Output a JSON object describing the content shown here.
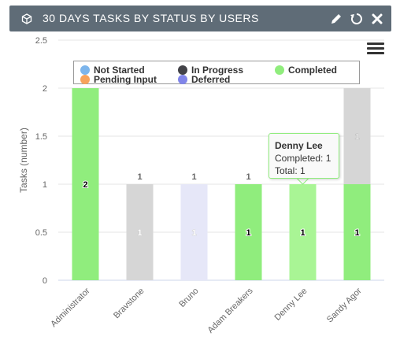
{
  "header": {
    "title": "30 DAYS TASKS BY STATUS BY USERS",
    "icons": [
      "cube-icon",
      "pencil-icon",
      "refresh-icon",
      "close-icon"
    ]
  },
  "colors": {
    "header_bg": "#5f6c77",
    "not_started": "#7cb5ec",
    "in_progress": "#434348",
    "completed": "#90ed7d",
    "pending_input": "#f7a35c",
    "deferred": "#8085e9",
    "gray_bar": "#d6d6d6",
    "lavender_bar": "#e6e7f8",
    "hover_green": "#a9f595"
  },
  "legend": {
    "items": [
      {
        "label": "Not Started",
        "color": "#7cb5ec"
      },
      {
        "label": "In Progress",
        "color": "#434348"
      },
      {
        "label": "Completed",
        "color": "#90ed7d"
      },
      {
        "label": "Pending Input",
        "color": "#f7a35c"
      },
      {
        "label": "Deferred",
        "color": "#8085e9"
      }
    ]
  },
  "tooltip": {
    "name": "Denny Lee",
    "line1": "Completed: 1",
    "line2": "Total: 1"
  },
  "chart_data": {
    "type": "bar",
    "stacked": true,
    "ylabel": "Tasks (number)",
    "ylim": [
      0,
      2.5
    ],
    "yticks": [
      "0",
      "0.5",
      "1",
      "1.5",
      "2",
      "2.5"
    ],
    "categories": [
      "Administrator",
      "Bravstone",
      "Bruno",
      "Adam Breakers",
      "Denny Lee",
      "Sandy Agor"
    ],
    "series": [
      {
        "name": "Not Started",
        "values": [
          0,
          0,
          0,
          0,
          0,
          0
        ]
      },
      {
        "name": "In Progress",
        "values": [
          0,
          0,
          0,
          0,
          0,
          0
        ]
      },
      {
        "name": "Completed",
        "values": [
          2,
          0,
          0,
          1,
          1,
          1
        ]
      },
      {
        "name": "Pending Input",
        "values": [
          0,
          0,
          0,
          0,
          0,
          0
        ]
      },
      {
        "name": "Deferred",
        "values": [
          0,
          0,
          0,
          0,
          0,
          0
        ]
      }
    ],
    "totals": [
      2,
      1,
      1,
      1,
      1,
      2
    ],
    "bar_colors": [
      "#90ed7d",
      "#d6d6d6",
      "#e6e7f8",
      "#90ed7d",
      "#a9f595",
      "#90ed7d"
    ],
    "upper_segments": [
      {
        "index": 5,
        "value": 1,
        "color": "#d6d6d6",
        "label": "1"
      }
    ],
    "segment_labels": [
      "2",
      "1",
      "1",
      "1",
      "1",
      "1"
    ],
    "faded_labels": [
      false,
      true,
      true,
      false,
      false,
      false
    ],
    "total_labels": [
      "",
      "1",
      "1",
      "1",
      "1",
      ""
    ],
    "legend_position": "top"
  }
}
